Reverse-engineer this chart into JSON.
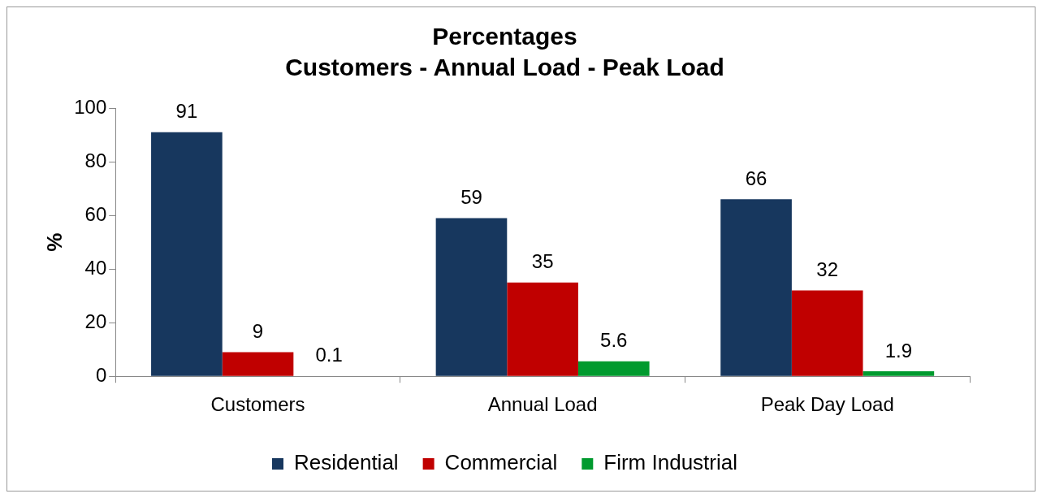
{
  "chart_data": {
    "type": "bar",
    "title": "Percentages",
    "subtitle": "Customers - Annual Load - Peak Load",
    "ylabel": "%",
    "categories": [
      "Customers",
      "Annual Load",
      "Peak Day Load"
    ],
    "series": [
      {
        "name": "Residential",
        "color": "#17375e",
        "values": [
          91,
          59,
          66
        ]
      },
      {
        "name": "Commercial",
        "color": "#c00000",
        "values": [
          9,
          35,
          32
        ]
      },
      {
        "name": "Firm Industrial",
        "color": "#009a2e",
        "values": [
          0.1,
          5.6,
          1.9
        ]
      }
    ],
    "ylim": [
      0,
      100
    ],
    "yticks": [
      0,
      20,
      40,
      60,
      80,
      100
    ],
    "grid": false,
    "legend": "bottom",
    "data_labels": true
  }
}
